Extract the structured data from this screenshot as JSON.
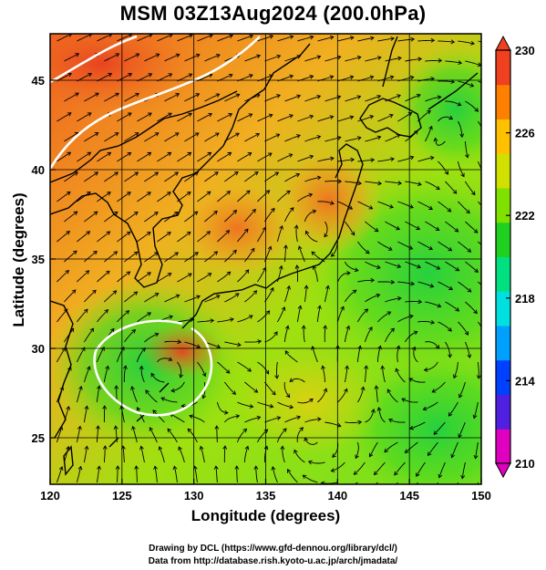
{
  "title": "MSM 03Z13Aug2024 (200.0hPa)",
  "map": {
    "xlabel": "Longitude (degrees)",
    "ylabel": "Latitude  (degrees)",
    "lon_ticks": [
      "120",
      "125",
      "130",
      "135",
      "140",
      "145",
      "150"
    ],
    "lat_ticks": [
      "25",
      "30",
      "35",
      "40",
      "45"
    ],
    "lon_range": [
      120,
      150
    ],
    "lat_range": [
      22.4,
      47.6
    ]
  },
  "colorbar": {
    "ticks": [
      "230",
      "226",
      "222",
      "218",
      "214",
      "210"
    ],
    "range": [
      210,
      230
    ],
    "colors": [
      "#e000c0",
      "#5020e0",
      "#0040ff",
      "#00a0ff",
      "#00e0e0",
      "#00e080",
      "#20d020",
      "#80e000",
      "#d0e000",
      "#ffc000",
      "#ff8000",
      "#f04020"
    ]
  },
  "credits": {
    "line1": "Drawing by DCL (https://www.gfd-dennou.org/library/dcl/)",
    "line2": "Data from http://database.rish.kyoto-u.ac.jp/arch/jmadata/"
  }
}
